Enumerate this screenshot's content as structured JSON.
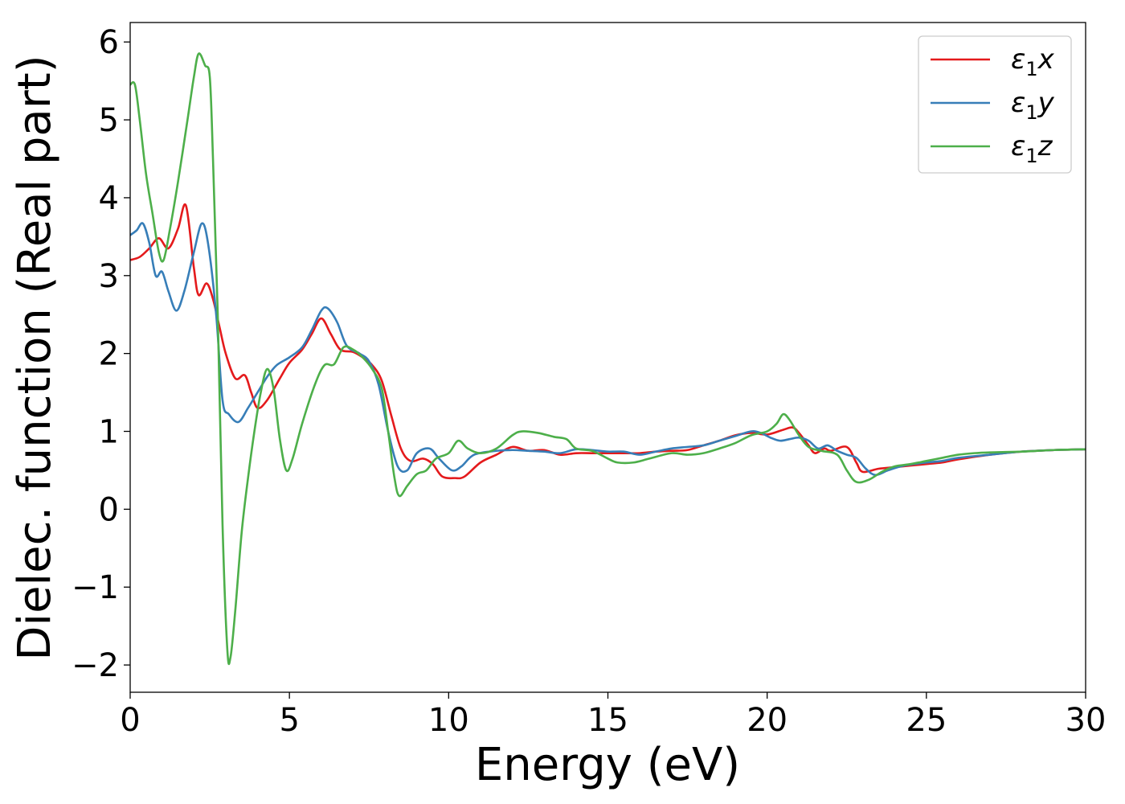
{
  "chart_data": {
    "type": "line",
    "xlabel": "Energy (eV)",
    "ylabel": "Dielec. function (Real part)",
    "xlim": [
      0,
      30
    ],
    "ylim": [
      -2.35,
      6.25
    ],
    "xticks": [
      0,
      5,
      10,
      15,
      20,
      25,
      30
    ],
    "yticks": [
      -2,
      -1,
      0,
      1,
      2,
      3,
      4,
      5,
      6
    ],
    "xtick_labels": [
      "0",
      "5",
      "10",
      "15",
      "20",
      "25",
      "30"
    ],
    "ytick_labels": [
      "−2",
      "−1",
      "0",
      "1",
      "2",
      "3",
      "4",
      "5",
      "6"
    ],
    "grid": false,
    "legend_position": "top-right",
    "series": [
      {
        "name": "ε₁x",
        "legend_base": "ε",
        "legend_sub": "1",
        "legend_tail": "x",
        "color": "#e41a1c",
        "points": [
          [
            0,
            3.2
          ],
          [
            0.3,
            3.24
          ],
          [
            0.6,
            3.35
          ],
          [
            0.9,
            3.48
          ],
          [
            1.2,
            3.35
          ],
          [
            1.5,
            3.6
          ],
          [
            1.75,
            3.9
          ],
          [
            2.0,
            3.1
          ],
          [
            2.15,
            2.75
          ],
          [
            2.4,
            2.9
          ],
          [
            2.6,
            2.7
          ],
          [
            2.8,
            2.35
          ],
          [
            3.0,
            2.0
          ],
          [
            3.3,
            1.68
          ],
          [
            3.6,
            1.72
          ],
          [
            3.8,
            1.5
          ],
          [
            4.0,
            1.3
          ],
          [
            4.3,
            1.4
          ],
          [
            4.7,
            1.68
          ],
          [
            5.0,
            1.88
          ],
          [
            5.4,
            2.05
          ],
          [
            5.7,
            2.25
          ],
          [
            6.0,
            2.45
          ],
          [
            6.3,
            2.25
          ],
          [
            6.6,
            2.05
          ],
          [
            7.0,
            2.02
          ],
          [
            7.3,
            1.95
          ],
          [
            7.6,
            1.85
          ],
          [
            7.9,
            1.65
          ],
          [
            8.2,
            1.2
          ],
          [
            8.5,
            0.78
          ],
          [
            8.8,
            0.62
          ],
          [
            9.2,
            0.65
          ],
          [
            9.5,
            0.58
          ],
          [
            9.8,
            0.42
          ],
          [
            10.2,
            0.4
          ],
          [
            10.5,
            0.42
          ],
          [
            11.0,
            0.6
          ],
          [
            11.5,
            0.7
          ],
          [
            12.0,
            0.8
          ],
          [
            12.5,
            0.75
          ],
          [
            13.0,
            0.76
          ],
          [
            13.5,
            0.7
          ],
          [
            14.0,
            0.72
          ],
          [
            14.5,
            0.72
          ],
          [
            15.0,
            0.72
          ],
          [
            15.5,
            0.72
          ],
          [
            16.0,
            0.72
          ],
          [
            16.5,
            0.74
          ],
          [
            17.0,
            0.75
          ],
          [
            17.5,
            0.76
          ],
          [
            18.0,
            0.82
          ],
          [
            18.5,
            0.88
          ],
          [
            19.0,
            0.95
          ],
          [
            19.5,
            0.98
          ],
          [
            20.0,
            0.96
          ],
          [
            20.5,
            1.02
          ],
          [
            20.8,
            1.05
          ],
          [
            21.0,
            0.98
          ],
          [
            21.3,
            0.82
          ],
          [
            21.5,
            0.72
          ],
          [
            21.8,
            0.78
          ],
          [
            22.0,
            0.75
          ],
          [
            22.5,
            0.8
          ],
          [
            22.8,
            0.6
          ],
          [
            23.0,
            0.48
          ],
          [
            23.5,
            0.52
          ],
          [
            24.0,
            0.54
          ],
          [
            24.5,
            0.56
          ],
          [
            25.0,
            0.58
          ],
          [
            25.5,
            0.6
          ],
          [
            26.0,
            0.64
          ],
          [
            27.0,
            0.7
          ],
          [
            28.0,
            0.74
          ],
          [
            29.0,
            0.76
          ],
          [
            30.0,
            0.77
          ]
        ]
      },
      {
        "name": "ε₁y",
        "legend_base": "ε",
        "legend_sub": "1",
        "legend_tail": "y",
        "color": "#377eb8",
        "points": [
          [
            0,
            3.52
          ],
          [
            0.2,
            3.58
          ],
          [
            0.4,
            3.67
          ],
          [
            0.6,
            3.42
          ],
          [
            0.8,
            3.0
          ],
          [
            1.0,
            3.05
          ],
          [
            1.2,
            2.8
          ],
          [
            1.45,
            2.55
          ],
          [
            1.7,
            2.8
          ],
          [
            2.0,
            3.3
          ],
          [
            2.25,
            3.67
          ],
          [
            2.45,
            3.4
          ],
          [
            2.7,
            2.5
          ],
          [
            2.9,
            1.4
          ],
          [
            3.1,
            1.22
          ],
          [
            3.4,
            1.12
          ],
          [
            3.7,
            1.3
          ],
          [
            4.0,
            1.5
          ],
          [
            4.3,
            1.7
          ],
          [
            4.6,
            1.85
          ],
          [
            5.0,
            1.95
          ],
          [
            5.4,
            2.08
          ],
          [
            5.7,
            2.3
          ],
          [
            6.0,
            2.55
          ],
          [
            6.2,
            2.58
          ],
          [
            6.5,
            2.4
          ],
          [
            6.8,
            2.1
          ],
          [
            7.2,
            2.0
          ],
          [
            7.5,
            1.9
          ],
          [
            7.8,
            1.6
          ],
          [
            8.1,
            1.0
          ],
          [
            8.4,
            0.55
          ],
          [
            8.7,
            0.5
          ],
          [
            9.0,
            0.72
          ],
          [
            9.4,
            0.78
          ],
          [
            9.7,
            0.65
          ],
          [
            10.1,
            0.5
          ],
          [
            10.4,
            0.55
          ],
          [
            10.8,
            0.7
          ],
          [
            11.5,
            0.75
          ],
          [
            12.0,
            0.76
          ],
          [
            12.5,
            0.75
          ],
          [
            13.0,
            0.74
          ],
          [
            13.5,
            0.72
          ],
          [
            14.0,
            0.77
          ],
          [
            14.5,
            0.76
          ],
          [
            15.0,
            0.74
          ],
          [
            15.5,
            0.74
          ],
          [
            16.0,
            0.7
          ],
          [
            16.5,
            0.74
          ],
          [
            17.0,
            0.78
          ],
          [
            17.5,
            0.8
          ],
          [
            18.0,
            0.82
          ],
          [
            18.5,
            0.88
          ],
          [
            19.0,
            0.94
          ],
          [
            19.5,
            1.0
          ],
          [
            19.8,
            0.98
          ],
          [
            20.1,
            0.92
          ],
          [
            20.4,
            0.88
          ],
          [
            20.7,
            0.9
          ],
          [
            21.0,
            0.92
          ],
          [
            21.3,
            0.88
          ],
          [
            21.6,
            0.78
          ],
          [
            21.9,
            0.82
          ],
          [
            22.2,
            0.75
          ],
          [
            22.5,
            0.7
          ],
          [
            22.8,
            0.66
          ],
          [
            23.1,
            0.52
          ],
          [
            23.4,
            0.44
          ],
          [
            23.8,
            0.5
          ],
          [
            24.3,
            0.56
          ],
          [
            25.0,
            0.6
          ],
          [
            25.5,
            0.62
          ],
          [
            26.0,
            0.66
          ],
          [
            27.0,
            0.7
          ],
          [
            28.0,
            0.74
          ],
          [
            29.0,
            0.76
          ],
          [
            30.0,
            0.77
          ]
        ]
      },
      {
        "name": "ε₁z",
        "legend_base": "ε",
        "legend_sub": "1",
        "legend_tail": "z",
        "color": "#4daf4a",
        "points": [
          [
            0,
            5.45
          ],
          [
            0.15,
            5.45
          ],
          [
            0.3,
            5.0
          ],
          [
            0.5,
            4.3
          ],
          [
            0.7,
            3.8
          ],
          [
            0.9,
            3.3
          ],
          [
            1.05,
            3.2
          ],
          [
            1.25,
            3.6
          ],
          [
            1.5,
            4.2
          ],
          [
            1.8,
            5.0
          ],
          [
            2.0,
            5.55
          ],
          [
            2.15,
            5.85
          ],
          [
            2.35,
            5.7
          ],
          [
            2.5,
            5.55
          ],
          [
            2.6,
            4.5
          ],
          [
            2.75,
            2.5
          ],
          [
            2.9,
            -0.2
          ],
          [
            3.05,
            -1.8
          ],
          [
            3.15,
            -1.9
          ],
          [
            3.3,
            -1.3
          ],
          [
            3.5,
            -0.3
          ],
          [
            3.7,
            0.4
          ],
          [
            3.9,
            1.0
          ],
          [
            4.1,
            1.5
          ],
          [
            4.3,
            1.8
          ],
          [
            4.5,
            1.55
          ],
          [
            4.7,
            0.9
          ],
          [
            4.9,
            0.5
          ],
          [
            5.1,
            0.65
          ],
          [
            5.4,
            1.1
          ],
          [
            5.8,
            1.6
          ],
          [
            6.1,
            1.85
          ],
          [
            6.4,
            1.86
          ],
          [
            6.7,
            2.08
          ],
          [
            7.0,
            2.05
          ],
          [
            7.3,
            1.95
          ],
          [
            7.6,
            1.8
          ],
          [
            7.9,
            1.55
          ],
          [
            8.1,
            1.0
          ],
          [
            8.3,
            0.4
          ],
          [
            8.45,
            0.17
          ],
          [
            8.7,
            0.3
          ],
          [
            9.0,
            0.45
          ],
          [
            9.3,
            0.5
          ],
          [
            9.6,
            0.65
          ],
          [
            10.0,
            0.72
          ],
          [
            10.3,
            0.88
          ],
          [
            10.6,
            0.78
          ],
          [
            11.0,
            0.72
          ],
          [
            11.5,
            0.78
          ],
          [
            12.0,
            0.95
          ],
          [
            12.3,
            1.0
          ],
          [
            12.8,
            0.98
          ],
          [
            13.3,
            0.93
          ],
          [
            13.7,
            0.9
          ],
          [
            14.0,
            0.78
          ],
          [
            14.5,
            0.75
          ],
          [
            15.0,
            0.65
          ],
          [
            15.3,
            0.6
          ],
          [
            15.8,
            0.6
          ],
          [
            16.3,
            0.65
          ],
          [
            17.0,
            0.72
          ],
          [
            17.5,
            0.7
          ],
          [
            18.0,
            0.72
          ],
          [
            18.5,
            0.78
          ],
          [
            19.0,
            0.85
          ],
          [
            19.5,
            0.95
          ],
          [
            20.0,
            1.0
          ],
          [
            20.3,
            1.1
          ],
          [
            20.5,
            1.22
          ],
          [
            20.7,
            1.15
          ],
          [
            21.0,
            0.95
          ],
          [
            21.3,
            0.8
          ],
          [
            21.7,
            0.75
          ],
          [
            22.2,
            0.7
          ],
          [
            22.5,
            0.5
          ],
          [
            22.8,
            0.35
          ],
          [
            23.2,
            0.38
          ],
          [
            23.6,
            0.48
          ],
          [
            24.0,
            0.55
          ],
          [
            24.5,
            0.58
          ],
          [
            25.0,
            0.62
          ],
          [
            25.5,
            0.66
          ],
          [
            26.0,
            0.7
          ],
          [
            26.5,
            0.72
          ],
          [
            27.0,
            0.73
          ],
          [
            28.0,
            0.74
          ],
          [
            29.0,
            0.76
          ],
          [
            30.0,
            0.77
          ]
        ]
      }
    ]
  }
}
